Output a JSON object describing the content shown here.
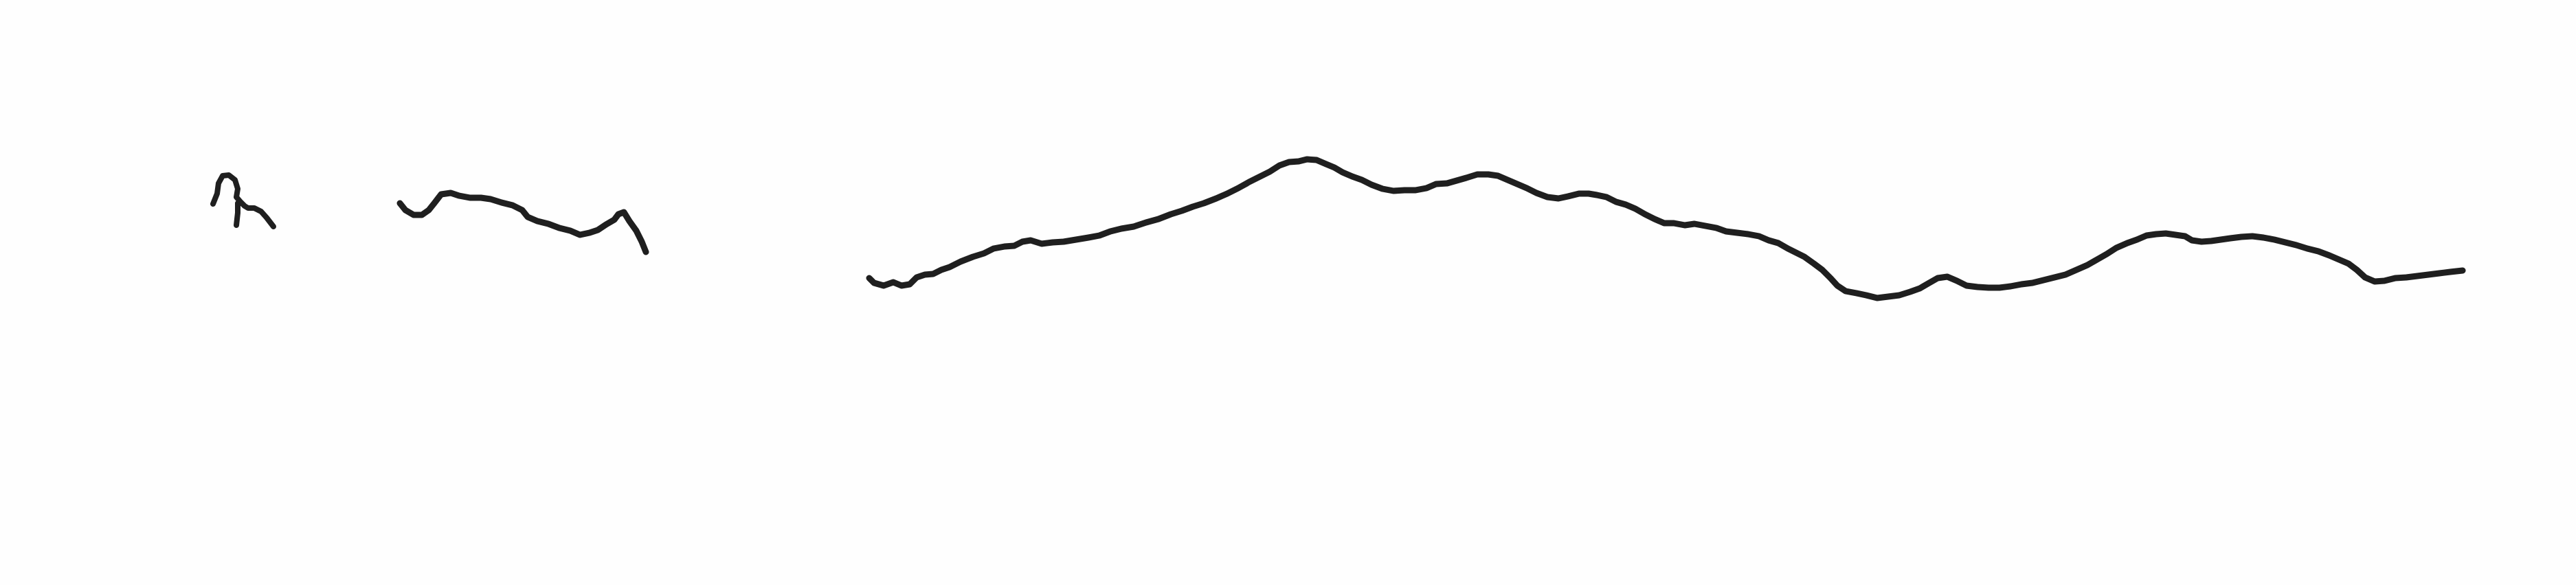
{
  "sketch": {
    "ink_color": "#1f1f1f",
    "background_color": "#fefefe"
  }
}
